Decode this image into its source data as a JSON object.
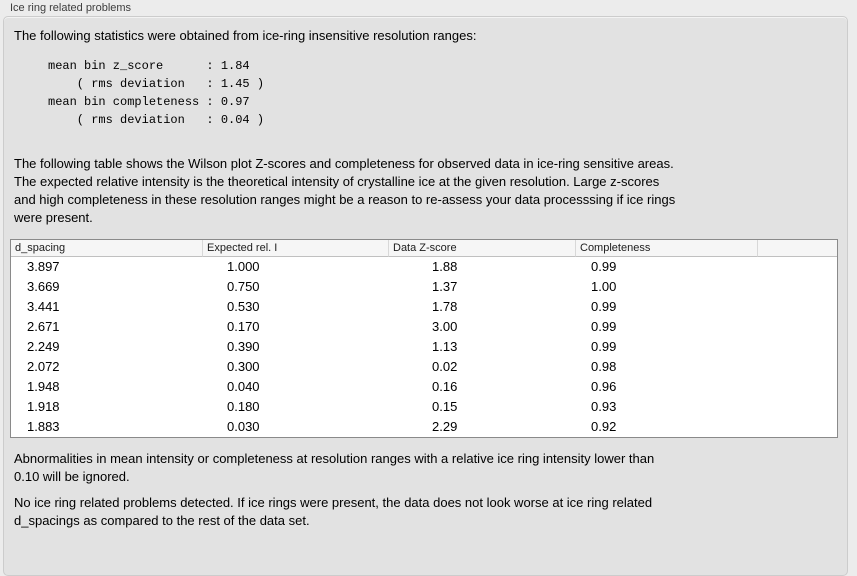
{
  "group_title": "Ice ring related problems",
  "intro": "The following statistics were obtained from ice-ring insensitive resolution ranges:",
  "stats_block": [
    "mean bin z_score      : 1.84",
    "    ( rms deviation   : 1.45 )",
    "mean bin completeness : 0.97",
    "    ( rms deviation   : 0.04 )"
  ],
  "description": [
    "The following table shows the Wilson plot Z-scores and completeness for observed data in ice-ring sensitive areas.",
    "The expected relative intensity is the theoretical intensity of crystalline ice at the given resolution. Large z-scores",
    "and high completeness in these resolution ranges might be a reason to re-assess your data processsing if ice rings",
    "were present."
  ],
  "table": {
    "columns": [
      "d_spacing",
      "Expected rel. I",
      "Data Z-score",
      "Completeness",
      ""
    ],
    "rows": [
      [
        "3.897",
        "1.000",
        "1.88",
        "0.99"
      ],
      [
        "3.669",
        "0.750",
        "1.37",
        "1.00"
      ],
      [
        "3.441",
        "0.530",
        "1.78",
        "0.99"
      ],
      [
        "2.671",
        "0.170",
        "3.00",
        "0.99"
      ],
      [
        "2.249",
        "0.390",
        "1.13",
        "0.99"
      ],
      [
        "2.072",
        "0.300",
        "0.02",
        "0.98"
      ],
      [
        "1.948",
        "0.040",
        "0.16",
        "0.96"
      ],
      [
        "1.918",
        "0.180",
        "0.15",
        "0.93"
      ],
      [
        "1.883",
        "0.030",
        "2.29",
        "0.92"
      ]
    ]
  },
  "note_threshold": [
    "Abnormalities in mean intensity or completeness at resolution ranges with a relative ice ring intensity lower than",
    "0.10 will be ignored."
  ],
  "note_conclusion": [
    "No ice ring related problems detected. If ice rings were present, the data does not look worse at ice ring related",
    "d_spacings as compared to the rest of the data set."
  ],
  "colors": {
    "window_bg": "#ececec",
    "groupbox_bg": "#e2e2e2",
    "table_bg": "#ffffff",
    "table_header_bg": "#f6f6f6",
    "table_border": "#8a8a8a"
  }
}
